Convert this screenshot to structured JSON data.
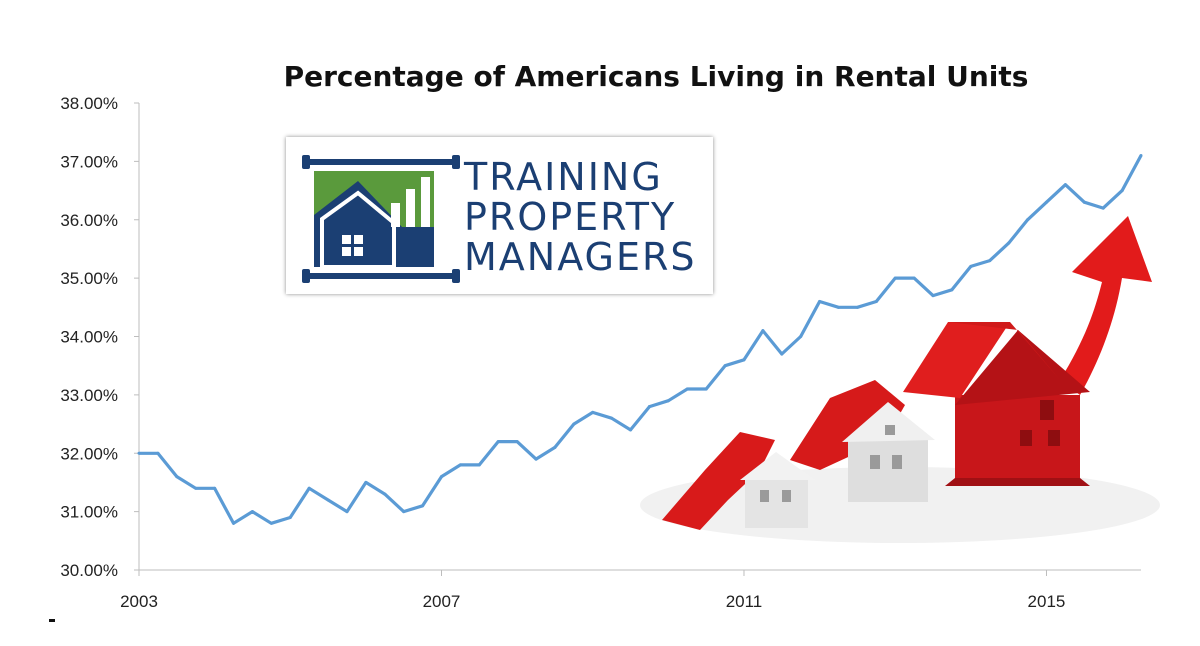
{
  "chart_data": {
    "type": "line",
    "title": "Percentage of Americans Living in Rental Units",
    "x": [
      "2003-Q1",
      "2003-Q2",
      "2003-Q3",
      "2003-Q4",
      "2004-Q1",
      "2004-Q2",
      "2004-Q3",
      "2004-Q4",
      "2005-Q1",
      "2005-Q2",
      "2005-Q3",
      "2005-Q4",
      "2006-Q1",
      "2006-Q2",
      "2006-Q3",
      "2006-Q4",
      "2007-Q1",
      "2007-Q2",
      "2007-Q3",
      "2007-Q4",
      "2008-Q1",
      "2008-Q2",
      "2008-Q3",
      "2008-Q4",
      "2009-Q1",
      "2009-Q2",
      "2009-Q3",
      "2009-Q4",
      "2010-Q1",
      "2010-Q2",
      "2010-Q3",
      "2010-Q4",
      "2011-Q1",
      "2011-Q2",
      "2011-Q3",
      "2011-Q4",
      "2012-Q1",
      "2012-Q2",
      "2012-Q3",
      "2012-Q4",
      "2013-Q1",
      "2013-Q2",
      "2013-Q3",
      "2013-Q4",
      "2014-Q1",
      "2014-Q2",
      "2014-Q3",
      "2014-Q4",
      "2015-Q1",
      "2015-Q2",
      "2015-Q3",
      "2015-Q4",
      "2016-Q1",
      "2016-Q2"
    ],
    "series": [
      {
        "values": [
          32.0,
          32.0,
          31.6,
          31.4,
          31.4,
          30.8,
          31.0,
          30.8,
          30.9,
          31.4,
          31.2,
          31.0,
          31.5,
          31.3,
          31.0,
          31.1,
          31.6,
          31.8,
          31.8,
          32.2,
          32.2,
          31.9,
          32.1,
          32.5,
          32.7,
          32.6,
          32.4,
          32.8,
          32.9,
          33.1,
          33.1,
          33.5,
          33.6,
          34.1,
          33.7,
          34.0,
          34.6,
          34.5,
          34.5,
          34.6,
          35.0,
          35.0,
          34.7,
          34.8,
          35.2,
          35.3,
          35.6,
          36.0,
          36.3,
          36.6,
          36.3,
          36.2,
          36.5,
          37.1
        ]
      }
    ],
    "x_tick_labels": [
      "2003",
      "2007",
      "2011",
      "2015"
    ],
    "y_tick_labels": [
      "30.00%",
      "31.00%",
      "32.00%",
      "33.00%",
      "34.00%",
      "35.00%",
      "36.00%",
      "37.00%",
      "38.00%"
    ],
    "ylim": [
      30,
      38
    ],
    "xlabel": "",
    "ylabel": "",
    "grid": false,
    "line_color": "#5b9bd5"
  },
  "logo": {
    "line1": "TRAINING",
    "line2": "PROPERTY",
    "line3": "MANAGERS",
    "colors": {
      "navy": "#1b3f73",
      "green": "#5a9a3c"
    }
  },
  "illustration": {
    "description_colors": {
      "roof": "#d8181c",
      "arrow": "#e21b1b",
      "house": "#e8e8e8"
    }
  }
}
